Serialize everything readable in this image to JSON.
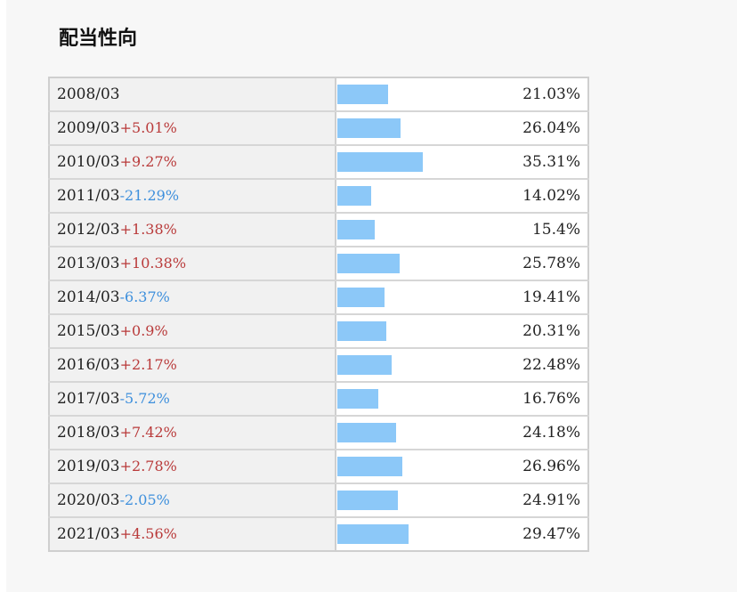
{
  "title": "配当性向",
  "colors": {
    "bar": "#8cc8f8",
    "increase": "#b93a3a",
    "decrease": "#3d8fdc"
  },
  "rows": [
    {
      "period": "2008/03",
      "change": "",
      "ratio_text": "21.03%",
      "ratio": 21.03
    },
    {
      "period": "2009/03",
      "change": "+5.01%",
      "ratio_text": "26.04%",
      "ratio": 26.04
    },
    {
      "period": "2010/03",
      "change": "+9.27%",
      "ratio_text": "35.31%",
      "ratio": 35.31
    },
    {
      "period": "2011/03",
      "change": "-21.29%",
      "ratio_text": "14.02%",
      "ratio": 14.02
    },
    {
      "period": "2012/03",
      "change": "+1.38%",
      "ratio_text": "15.4%",
      "ratio": 15.4
    },
    {
      "period": "2013/03",
      "change": "+10.38%",
      "ratio_text": "25.78%",
      "ratio": 25.78
    },
    {
      "period": "2014/03",
      "change": "-6.37%",
      "ratio_text": "19.41%",
      "ratio": 19.41
    },
    {
      "period": "2015/03",
      "change": "+0.9%",
      "ratio_text": "20.31%",
      "ratio": 20.31
    },
    {
      "period": "2016/03",
      "change": "+2.17%",
      "ratio_text": "22.48%",
      "ratio": 22.48
    },
    {
      "period": "2017/03",
      "change": "-5.72%",
      "ratio_text": "16.76%",
      "ratio": 16.76
    },
    {
      "period": "2018/03",
      "change": "+7.42%",
      "ratio_text": "24.18%",
      "ratio": 24.18
    },
    {
      "period": "2019/03",
      "change": "+2.78%",
      "ratio_text": "26.96%",
      "ratio": 26.96
    },
    {
      "period": "2020/03",
      "change": "-2.05%",
      "ratio_text": "24.91%",
      "ratio": 24.91
    },
    {
      "period": "2021/03",
      "change": "+4.56%",
      "ratio_text": "29.47%",
      "ratio": 29.47
    }
  ]
}
